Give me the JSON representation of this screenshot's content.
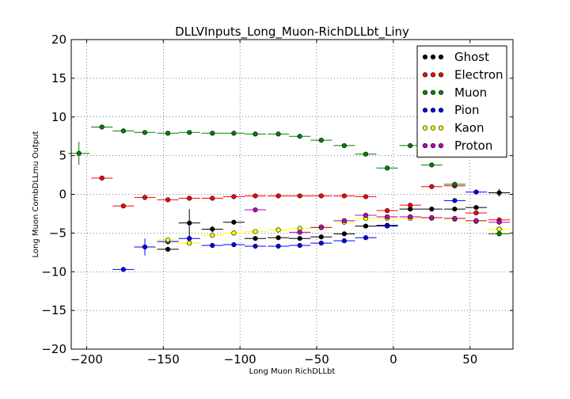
{
  "chart_data": {
    "type": "scatter",
    "title": "DLLVInputs_Long_Muon-RichDLLbt_Liny",
    "xlabel": "Long Muon RichDLLbt",
    "ylabel": "Long Muon CombDLLmu Output",
    "xlim": [
      -210,
      78
    ],
    "ylim": [
      -20,
      20
    ],
    "xticks": [
      -200,
      -150,
      -100,
      -50,
      0,
      50
    ],
    "xtick_labels": [
      "−200",
      "−150",
      "−100",
      "−50",
      "0",
      "50"
    ],
    "yticks": [
      -20,
      -15,
      -10,
      -5,
      0,
      5,
      10,
      15,
      20
    ],
    "ytick_labels": [
      "−20",
      "−15",
      "−10",
      "−5",
      "0",
      "5",
      "10",
      "15",
      "20"
    ],
    "grid": true,
    "legend_position": "top-right",
    "series": [
      {
        "name": "Ghost",
        "color": "#000000",
        "points": [
          {
            "x": -133,
            "y": -3.7,
            "xerr": 7,
            "yerr": 1.8
          },
          {
            "x": -118,
            "y": -4.5,
            "xerr": 7,
            "yerr": 0.4
          },
          {
            "x": -147,
            "y": -7.1,
            "xerr": 7,
            "yerr": 0.3
          },
          {
            "x": -104,
            "y": -3.6,
            "xerr": 7,
            "yerr": 0.3
          },
          {
            "x": -90,
            "y": -5.7,
            "xerr": 7,
            "yerr": 0.2
          },
          {
            "x": -75,
            "y": -5.6,
            "xerr": 7,
            "yerr": 0.2
          },
          {
            "x": -61,
            "y": -5.7,
            "xerr": 7,
            "yerr": 0.2
          },
          {
            "x": -47,
            "y": -5.5,
            "xerr": 7,
            "yerr": 0.2
          },
          {
            "x": -32,
            "y": -5.1,
            "xerr": 7,
            "yerr": 0.2
          },
          {
            "x": -18,
            "y": -4.1,
            "xerr": 7,
            "yerr": 0.2
          },
          {
            "x": -4,
            "y": -4.0,
            "xerr": 7,
            "yerr": 0.2
          },
          {
            "x": 11,
            "y": -1.9,
            "xerr": 7,
            "yerr": 0.2
          },
          {
            "x": 25,
            "y": -1.9,
            "xerr": 7,
            "yerr": 0.2
          },
          {
            "x": 40,
            "y": -1.9,
            "xerr": 7,
            "yerr": 0.2
          },
          {
            "x": 54,
            "y": -1.7,
            "xerr": 7,
            "yerr": 0.2
          },
          {
            "x": 69,
            "y": 0.2,
            "xerr": 7,
            "yerr": 0.5
          }
        ]
      },
      {
        "name": "Electron",
        "color": "#ff0000",
        "points": [
          {
            "x": -190,
            "y": 2.1,
            "xerr": 7,
            "yerr": 0.2
          },
          {
            "x": -176,
            "y": -1.5,
            "xerr": 7,
            "yerr": 0.3
          },
          {
            "x": -162,
            "y": -0.4,
            "xerr": 7,
            "yerr": 0.2
          },
          {
            "x": -147,
            "y": -0.7,
            "xerr": 7,
            "yerr": 0.2
          },
          {
            "x": -133,
            "y": -0.5,
            "xerr": 7,
            "yerr": 0.2
          },
          {
            "x": -118,
            "y": -0.5,
            "xerr": 7,
            "yerr": 0.1
          },
          {
            "x": -104,
            "y": -0.3,
            "xerr": 7,
            "yerr": 0.1
          },
          {
            "x": -90,
            "y": -0.2,
            "xerr": 7,
            "yerr": 0.1
          },
          {
            "x": -75,
            "y": -0.2,
            "xerr": 7,
            "yerr": 0.1
          },
          {
            "x": -61,
            "y": -0.2,
            "xerr": 7,
            "yerr": 0.1
          },
          {
            "x": -47,
            "y": -0.2,
            "xerr": 7,
            "yerr": 0.1
          },
          {
            "x": -32,
            "y": -0.2,
            "xerr": 7,
            "yerr": 0.1
          },
          {
            "x": -18,
            "y": -0.3,
            "xerr": 7,
            "yerr": 0.1
          },
          {
            "x": -4,
            "y": -2.1,
            "xerr": 7,
            "yerr": 0.2
          },
          {
            "x": 11,
            "y": -1.4,
            "xerr": 7,
            "yerr": 0.2
          },
          {
            "x": 25,
            "y": 1.0,
            "xerr": 7,
            "yerr": 0.2
          },
          {
            "x": 40,
            "y": 1.1,
            "xerr": 7,
            "yerr": 0.2
          },
          {
            "x": 54,
            "y": -2.4,
            "xerr": 7,
            "yerr": 0.2
          },
          {
            "x": 69,
            "y": -3.3,
            "xerr": 7,
            "yerr": 0.3
          }
        ]
      },
      {
        "name": "Muon",
        "color": "#008000",
        "points": [
          {
            "x": -205,
            "y": 5.3,
            "xerr": 7,
            "yerr": 1.5
          },
          {
            "x": -190,
            "y": 8.7,
            "xerr": 7,
            "yerr": 0.2
          },
          {
            "x": -176,
            "y": 8.2,
            "xerr": 7,
            "yerr": 0.1
          },
          {
            "x": -162,
            "y": 8.0,
            "xerr": 7,
            "yerr": 0.1
          },
          {
            "x": -147,
            "y": 7.9,
            "xerr": 7,
            "yerr": 0.1
          },
          {
            "x": -133,
            "y": 8.0,
            "xerr": 7,
            "yerr": 0.1
          },
          {
            "x": -118,
            "y": 7.9,
            "xerr": 7,
            "yerr": 0.1
          },
          {
            "x": -104,
            "y": 7.9,
            "xerr": 7,
            "yerr": 0.1
          },
          {
            "x": -90,
            "y": 7.8,
            "xerr": 7,
            "yerr": 0.1
          },
          {
            "x": -75,
            "y": 7.8,
            "xerr": 7,
            "yerr": 0.1
          },
          {
            "x": -61,
            "y": 7.5,
            "xerr": 7,
            "yerr": 0.1
          },
          {
            "x": -47,
            "y": 7.0,
            "xerr": 7,
            "yerr": 0.1
          },
          {
            "x": -32,
            "y": 6.3,
            "xerr": 7,
            "yerr": 0.1
          },
          {
            "x": -18,
            "y": 5.2,
            "xerr": 7,
            "yerr": 0.1
          },
          {
            "x": -4,
            "y": 3.4,
            "xerr": 7,
            "yerr": 0.2
          },
          {
            "x": 11,
            "y": 6.3,
            "xerr": 7,
            "yerr": 0.2
          },
          {
            "x": 25,
            "y": 3.8,
            "xerr": 7,
            "yerr": 0.2
          },
          {
            "x": 40,
            "y": 1.3,
            "xerr": 7,
            "yerr": 0.2
          },
          {
            "x": 69,
            "y": -5.1,
            "xerr": 7,
            "yerr": 0.3
          }
        ]
      },
      {
        "name": "Pion",
        "color": "#0000ff",
        "points": [
          {
            "x": -176,
            "y": -9.7,
            "xerr": 7,
            "yerr": 0.2
          },
          {
            "x": -162,
            "y": -6.8,
            "xerr": 7,
            "yerr": 1.1
          },
          {
            "x": -147,
            "y": -6.1,
            "xerr": 7,
            "yerr": 0.4
          },
          {
            "x": -133,
            "y": -5.7,
            "xerr": 7,
            "yerr": 0.3
          },
          {
            "x": -118,
            "y": -6.6,
            "xerr": 7,
            "yerr": 0.2
          },
          {
            "x": -104,
            "y": -6.5,
            "xerr": 7,
            "yerr": 0.2
          },
          {
            "x": -90,
            "y": -6.7,
            "xerr": 7,
            "yerr": 0.2
          },
          {
            "x": -75,
            "y": -6.7,
            "xerr": 7,
            "yerr": 0.2
          },
          {
            "x": -61,
            "y": -6.6,
            "xerr": 7,
            "yerr": 0.2
          },
          {
            "x": -47,
            "y": -6.3,
            "xerr": 7,
            "yerr": 0.2
          },
          {
            "x": -32,
            "y": -6.0,
            "xerr": 7,
            "yerr": 0.2
          },
          {
            "x": -18,
            "y": -5.6,
            "xerr": 7,
            "yerr": 0.2
          },
          {
            "x": -4,
            "y": -4.1,
            "xerr": 7,
            "yerr": 0.2
          },
          {
            "x": 40,
            "y": -0.8,
            "xerr": 7,
            "yerr": 0.2
          },
          {
            "x": 54,
            "y": 0.3,
            "xerr": 7,
            "yerr": 0.2
          }
        ]
      },
      {
        "name": "Kaon",
        "color": "#ffff00",
        "points": [
          {
            "x": -147,
            "y": -5.9,
            "xerr": 7,
            "yerr": 0.4
          },
          {
            "x": -133,
            "y": -6.3,
            "xerr": 7,
            "yerr": 0.3
          },
          {
            "x": -118,
            "y": -5.3,
            "xerr": 7,
            "yerr": 0.3
          },
          {
            "x": -104,
            "y": -5.0,
            "xerr": 7,
            "yerr": 0.2
          },
          {
            "x": -90,
            "y": -4.8,
            "xerr": 7,
            "yerr": 0.2
          },
          {
            "x": -75,
            "y": -4.6,
            "xerr": 7,
            "yerr": 0.2
          },
          {
            "x": -61,
            "y": -4.4,
            "xerr": 7,
            "yerr": 0.2
          },
          {
            "x": -47,
            "y": -4.2,
            "xerr": 7,
            "yerr": 0.2
          },
          {
            "x": -32,
            "y": -3.6,
            "xerr": 7,
            "yerr": 0.2
          },
          {
            "x": -18,
            "y": -3.1,
            "xerr": 7,
            "yerr": 0.2
          },
          {
            "x": -4,
            "y": -3.1,
            "xerr": 7,
            "yerr": 0.2
          },
          {
            "x": 11,
            "y": -3.1,
            "xerr": 7,
            "yerr": 0.2
          },
          {
            "x": 25,
            "y": -3.1,
            "xerr": 7,
            "yerr": 0.2
          },
          {
            "x": 40,
            "y": -3.2,
            "xerr": 7,
            "yerr": 0.2
          },
          {
            "x": 54,
            "y": -3.5,
            "xerr": 7,
            "yerr": 0.2
          },
          {
            "x": 69,
            "y": -4.5,
            "xerr": 7,
            "yerr": 0.3
          }
        ]
      },
      {
        "name": "Proton",
        "color": "#bf00bf",
        "points": [
          {
            "x": -90,
            "y": -2.0,
            "xerr": 7,
            "yerr": 0.2
          },
          {
            "x": -61,
            "y": -4.9,
            "xerr": 7,
            "yerr": 0.2
          },
          {
            "x": -47,
            "y": -4.3,
            "xerr": 7,
            "yerr": 0.2
          },
          {
            "x": -32,
            "y": -3.4,
            "xerr": 7,
            "yerr": 0.2
          },
          {
            "x": -18,
            "y": -2.7,
            "xerr": 7,
            "yerr": 0.2
          },
          {
            "x": -4,
            "y": -2.9,
            "xerr": 7,
            "yerr": 0.2
          },
          {
            "x": 11,
            "y": -2.9,
            "xerr": 7,
            "yerr": 0.2
          },
          {
            "x": 25,
            "y": -3.0,
            "xerr": 7,
            "yerr": 0.2
          },
          {
            "x": 40,
            "y": -3.1,
            "xerr": 7,
            "yerr": 0.2
          },
          {
            "x": 54,
            "y": -3.4,
            "xerr": 7,
            "yerr": 0.2
          },
          {
            "x": 69,
            "y": -3.6,
            "xerr": 7,
            "yerr": 0.2
          }
        ]
      }
    ]
  }
}
